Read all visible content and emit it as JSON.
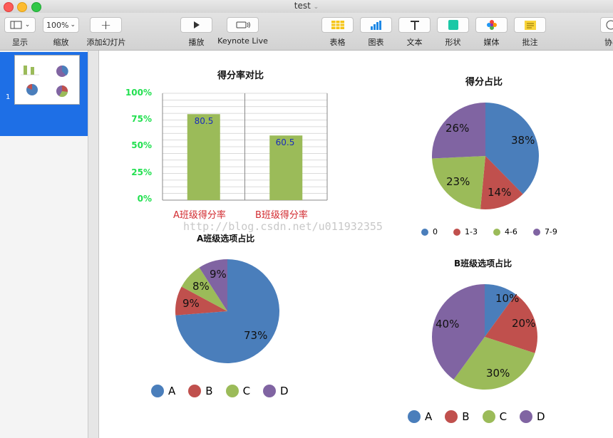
{
  "window": {
    "title": "test"
  },
  "toolbar": {
    "view_label": "显示",
    "zoom_value": "100%",
    "zoom_label": "缩放",
    "add_slide_label": "添加幻灯片",
    "play_label": "播放",
    "keynote_live_label": "Keynote Live",
    "table_label": "表格",
    "chart_label": "图表",
    "text_label": "文本",
    "shape_label": "形状",
    "media_label": "媒体",
    "comment_label": "批注",
    "collab_label": "协"
  },
  "sidebar": {
    "slides": [
      {
        "number": "1"
      }
    ]
  },
  "watermark": "http://blog.csdn.net/u011932355",
  "colors": {
    "blue": "#4a7ebb",
    "red": "#c0504d",
    "green": "#9bbb59",
    "purple": "#8064a2",
    "bar": "#9bbb59",
    "selection": "#1e6fe6"
  },
  "chart_data": [
    {
      "type": "bar",
      "title": "得分率对比",
      "categories": [
        "A班级得分率",
        "B班级得分率"
      ],
      "values": [
        80.5,
        60.5
      ],
      "value_labels": [
        "80.5",
        "60.5"
      ],
      "ylim": [
        0,
        100
      ],
      "y_ticks": [
        "0%",
        "25%",
        "50%",
        "75%",
        "100%"
      ],
      "grid": true
    },
    {
      "type": "pie",
      "title": "得分占比",
      "labels": [
        "0",
        "1-3",
        "4-6",
        "7-9"
      ],
      "values": [
        38,
        14,
        23,
        26
      ],
      "value_labels": [
        "38%",
        "14%",
        "23%",
        "26%"
      ],
      "legend": "bottom"
    },
    {
      "type": "pie",
      "title": "A班级选项占比",
      "labels": [
        "A",
        "B",
        "C",
        "D"
      ],
      "values": [
        73,
        9,
        8,
        9
      ],
      "value_labels": [
        "73%",
        "9%",
        "8%",
        "9%"
      ],
      "legend": "bottom"
    },
    {
      "type": "pie",
      "title": "B班级选项占比",
      "labels": [
        "A",
        "B",
        "C",
        "D"
      ],
      "values": [
        10,
        20,
        30,
        40
      ],
      "value_labels": [
        "10%",
        "20%",
        "30%",
        "40%"
      ],
      "legend": "bottom"
    }
  ]
}
